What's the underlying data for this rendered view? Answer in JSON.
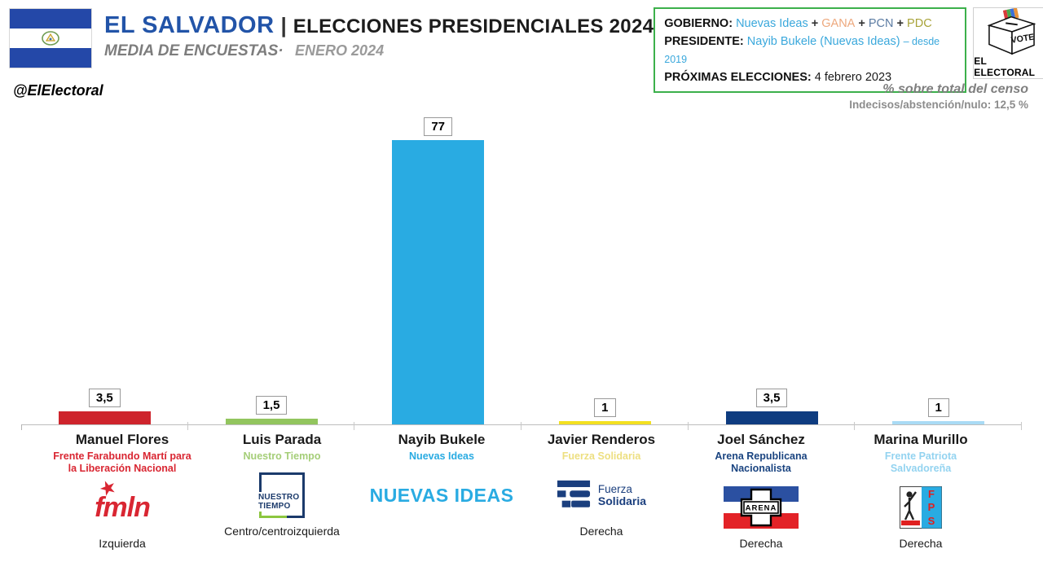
{
  "header": {
    "country": "EL SALVADOR",
    "separator": "|",
    "title": "ELECCIONES PRESIDENCIALES 2024",
    "subtitle": "MEDIA DE ENCUESTAS·",
    "subtitle_period": "ENERO 2024",
    "gov_box": {
      "gobierno_label": "GOBIERNO:",
      "gobierno_parties": [
        {
          "name": "Nuevas Ideas",
          "color": "#3AA8DC"
        },
        {
          "name": "GANA",
          "color": "#EDA87D"
        },
        {
          "name": "PCN",
          "color": "#5C7CA3"
        },
        {
          "name": "PDC",
          "color": "#A8A339"
        }
      ],
      "presidente_label": "PRESIDENTE:",
      "presidente_value": "Nayib Bukele (Nuevas Ideas)",
      "presidente_since": "– desde 2019",
      "elecciones_label": "PRÓXIMAS ELECCIONES:",
      "elecciones_value": "4 febrero 2023"
    },
    "logo": {
      "vote": "VOTE",
      "text": "EL ELECTORAL"
    }
  },
  "meta": {
    "handle": "@ElElectoral",
    "census_note": "% sobre total del censo",
    "undecided_note": "Indecisos/abstención/nulo: 12,5 %"
  },
  "chart_data": {
    "type": "bar",
    "title": "EL SALVADOR | ELECCIONES PRESIDENCIALES 2024 — MEDIA DE ENCUESTAS ENERO 2024",
    "ylabel": "% sobre total del censo",
    "ylim": [
      0,
      80
    ],
    "grid": false,
    "legend_position": "none",
    "categories": [
      "Manuel Flores",
      "Luis Parada",
      "Nayib Bukele",
      "Javier Renderos",
      "Joel Sánchez",
      "Marina Murillo"
    ],
    "values": [
      3.5,
      1.5,
      77,
      1,
      3.5,
      1
    ],
    "candidates": [
      {
        "name": "Manuel Flores",
        "party": "Frente Farabundo Martí para\nla Liberación Nacional",
        "value": 3.5,
        "value_label": "3,5",
        "color": "#CE242C",
        "party_color": "#D92632",
        "ideology": "Izquierda"
      },
      {
        "name": "Luis Parada",
        "party": "Nuestro Tiempo",
        "value": 1.5,
        "value_label": "1,5",
        "color": "#92C55E",
        "party_color": "#A5CE78",
        "ideology": "Centro/centroizquierda"
      },
      {
        "name": "Nayib Bukele",
        "party": "Nuevas Ideas",
        "value": 77,
        "value_label": "77",
        "color": "#29ABE2",
        "party_color": "#29ABE2",
        "ideology": ""
      },
      {
        "name": "Javier Renderos",
        "party": "Fuerza Solidaria",
        "value": 1,
        "value_label": "1",
        "color": "#F3E020",
        "party_color": "#EDDF80",
        "ideology": "Derecha"
      },
      {
        "name": "Joel Sánchez",
        "party": "Arena Republicana\nNacionalista",
        "value": 3.5,
        "value_label": "3,5",
        "color": "#0E3C80",
        "party_color": "#1A4480",
        "ideology": "Derecha"
      },
      {
        "name": "Marina Murillo",
        "party": "Frente Patriota\nSalvadoreña",
        "value": 1,
        "value_label": "1",
        "color": "#A9DBF5",
        "party_color": "#93D3F0",
        "ideology": "Derecha"
      }
    ]
  },
  "logos": {
    "fmln": {
      "text": "fmln"
    },
    "nuestro_tiempo": {
      "text": "NUESTRO\nTIEMPO"
    },
    "nuevas_ideas": {
      "text": "NUEVAS IDEAS"
    },
    "fuerza_solidaria": {
      "line1": "Fuerza",
      "line2": "Solidaria"
    },
    "arena": {
      "text": "ARENA"
    },
    "fps": {
      "letters": [
        "F",
        "P",
        "S"
      ]
    }
  }
}
